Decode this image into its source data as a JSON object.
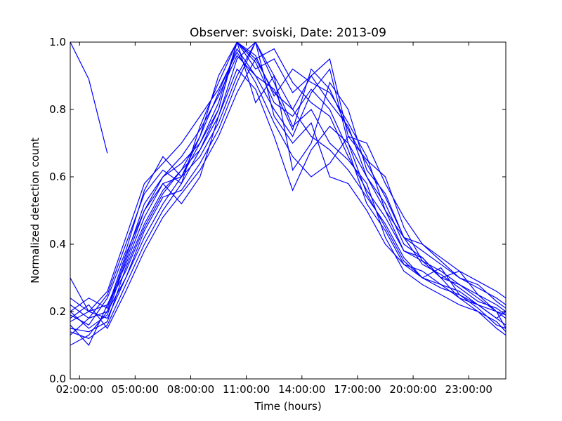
{
  "chart_data": {
    "type": "line",
    "title": "Observer: svoiski, Date: 2013-09",
    "xlabel": "Time (hours)",
    "ylabel": "Normalized detection count",
    "xlim": [
      1.5,
      25
    ],
    "ylim": [
      0,
      1.0
    ],
    "x_ticks": [
      {
        "value": 2,
        "label": "02:00:00"
      },
      {
        "value": 5,
        "label": "05:00:00"
      },
      {
        "value": 8,
        "label": "08:00:00"
      },
      {
        "value": 11,
        "label": "11:00:00"
      },
      {
        "value": 14,
        "label": "14:00:00"
      },
      {
        "value": 17,
        "label": "17:00:00"
      },
      {
        "value": 20,
        "label": "20:00:00"
      },
      {
        "value": 23,
        "label": "23:00:00"
      }
    ],
    "y_ticks": [
      {
        "value": 0.0,
        "label": "0.0"
      },
      {
        "value": 0.2,
        "label": "0.2"
      },
      {
        "value": 0.4,
        "label": "0.4"
      },
      {
        "value": 0.6,
        "label": "0.6"
      },
      {
        "value": 0.8,
        "label": "0.8"
      },
      {
        "value": 1.0,
        "label": "1.0"
      }
    ],
    "grid": false,
    "legend": "none",
    "line_color": "#0000ff",
    "series": [
      {
        "x": [
          1.5,
          2.5,
          3.5
        ],
        "y": [
          1.0,
          0.89,
          0.67
        ]
      },
      {
        "x": [
          1.5,
          2.5,
          3.5,
          4.5,
          5.5,
          6.5,
          7.5,
          8.5,
          9.5,
          10.5,
          11.5,
          12.5,
          13.5,
          14.5,
          15.5,
          16.5,
          17.5,
          18.5,
          19.5,
          20.5,
          21.5,
          22.5,
          23.5,
          24.5,
          25
        ],
        "y": [
          0.2,
          0.15,
          0.19,
          0.35,
          0.5,
          0.58,
          0.6,
          0.7,
          0.8,
          1.0,
          0.95,
          0.85,
          0.8,
          0.9,
          0.82,
          0.75,
          0.6,
          0.5,
          0.38,
          0.36,
          0.3,
          0.28,
          0.25,
          0.22,
          0.2
        ]
      },
      {
        "x": [
          1.5,
          2.5,
          3.5,
          4.5,
          5.5,
          6.5,
          7.5,
          8.5,
          9.5,
          10.5,
          11.5,
          12.5,
          13.5,
          14.5,
          15.5,
          16.5,
          17.5,
          18.5,
          19.5,
          20.5,
          21.5,
          22.5,
          23.5,
          24.5,
          25
        ],
        "y": [
          0.17,
          0.2,
          0.22,
          0.32,
          0.45,
          0.55,
          0.62,
          0.72,
          0.85,
          0.98,
          0.9,
          0.8,
          0.72,
          0.85,
          0.92,
          0.7,
          0.55,
          0.45,
          0.35,
          0.3,
          0.33,
          0.25,
          0.22,
          0.18,
          0.16
        ]
      },
      {
        "x": [
          1.5,
          2.5,
          3.5,
          4.5,
          5.5,
          6.5,
          7.5,
          8.5,
          9.5,
          10.5,
          11.5,
          12.5,
          13.5,
          14.5,
          15.5,
          16.5,
          17.5,
          18.5,
          19.5,
          20.5,
          21.5,
          22.5,
          23.5,
          24.5,
          25
        ],
        "y": [
          0.14,
          0.12,
          0.16,
          0.28,
          0.4,
          0.5,
          0.58,
          0.68,
          0.78,
          0.95,
          1.0,
          0.88,
          0.75,
          0.8,
          0.7,
          0.65,
          0.58,
          0.42,
          0.32,
          0.28,
          0.25,
          0.22,
          0.2,
          0.15,
          0.13
        ]
      },
      {
        "x": [
          1.5,
          2.5,
          3.5,
          4.5,
          5.5,
          6.5,
          7.5,
          8.5,
          9.5,
          10.5,
          11.5,
          12.5,
          13.5,
          14.5,
          15.5,
          16.5,
          17.5,
          18.5,
          19.5,
          20.5,
          21.5,
          22.5,
          23.5,
          24.5,
          25
        ],
        "y": [
          0.22,
          0.18,
          0.25,
          0.4,
          0.55,
          0.62,
          0.58,
          0.75,
          0.88,
          1.0,
          0.82,
          0.9,
          0.62,
          0.7,
          0.88,
          0.8,
          0.62,
          0.55,
          0.42,
          0.4,
          0.35,
          0.3,
          0.27,
          0.24,
          0.22
        ]
      },
      {
        "x": [
          1.5,
          2.5,
          3.5,
          4.5,
          5.5,
          6.5,
          7.5,
          8.5,
          9.5,
          10.5,
          11.5,
          12.5,
          13.5,
          14.5,
          15.5,
          16.5,
          17.5,
          18.5,
          19.5,
          20.5,
          21.5,
          22.5,
          23.5,
          24.5,
          25
        ],
        "y": [
          0.3,
          0.2,
          0.18,
          0.3,
          0.42,
          0.52,
          0.6,
          0.66,
          0.76,
          0.9,
          1.0,
          0.78,
          0.7,
          0.76,
          0.6,
          0.58,
          0.5,
          0.4,
          0.34,
          0.32,
          0.28,
          0.26,
          0.22,
          0.2,
          0.18
        ]
      },
      {
        "x": [
          1.5,
          2.5,
          3.5,
          4.5,
          5.5,
          6.5,
          7.5,
          8.5,
          9.5,
          10.5,
          11.5,
          12.5,
          13.5,
          14.5,
          15.5,
          16.5,
          17.5,
          18.5,
          19.5,
          20.5,
          21.5,
          22.5,
          23.5,
          24.5,
          25
        ],
        "y": [
          0.1,
          0.13,
          0.2,
          0.36,
          0.52,
          0.6,
          0.64,
          0.7,
          0.82,
          1.0,
          0.92,
          0.95,
          0.85,
          0.9,
          0.95,
          0.72,
          0.65,
          0.6,
          0.45,
          0.35,
          0.3,
          0.32,
          0.25,
          0.2,
          0.15
        ]
      },
      {
        "x": [
          1.5,
          2.5,
          3.5,
          4.5,
          5.5,
          6.5,
          7.5,
          8.5,
          9.5,
          10.5,
          11.5,
          12.5,
          13.5,
          14.5,
          15.5,
          16.5,
          17.5,
          18.5,
          19.5,
          20.5,
          21.5,
          22.5,
          23.5,
          24.5,
          25
        ],
        "y": [
          0.18,
          0.22,
          0.15,
          0.26,
          0.38,
          0.48,
          0.55,
          0.62,
          0.72,
          0.85,
          0.95,
          0.98,
          0.88,
          0.82,
          0.78,
          0.66,
          0.56,
          0.48,
          0.38,
          0.35,
          0.32,
          0.28,
          0.24,
          0.2,
          0.19
        ]
      },
      {
        "x": [
          1.5,
          2.5,
          3.5,
          4.5,
          5.5,
          6.5,
          7.5,
          8.5,
          9.5,
          10.5,
          11.5,
          12.5,
          13.5,
          14.5,
          15.5,
          16.5,
          17.5,
          18.5,
          19.5,
          20.5,
          21.5,
          22.5,
          23.5,
          24.5,
          25
        ],
        "y": [
          0.16,
          0.1,
          0.22,
          0.34,
          0.48,
          0.58,
          0.52,
          0.6,
          0.78,
          0.92,
          0.86,
          0.72,
          0.56,
          0.68,
          0.75,
          0.7,
          0.6,
          0.52,
          0.4,
          0.36,
          0.3,
          0.24,
          0.22,
          0.18,
          0.2
        ]
      },
      {
        "x": [
          1.5,
          2.5,
          3.5,
          4.5,
          5.5,
          6.5,
          7.5,
          8.5,
          9.5,
          10.5,
          11.5,
          12.5,
          13.5,
          14.5,
          15.5,
          16.5,
          17.5,
          18.5,
          19.5,
          20.5,
          21.5,
          22.5,
          23.5,
          24.5,
          25
        ],
        "y": [
          0.19,
          0.16,
          0.24,
          0.38,
          0.56,
          0.66,
          0.6,
          0.72,
          0.9,
          1.0,
          0.96,
          0.84,
          0.92,
          0.88,
          0.85,
          0.76,
          0.66,
          0.5,
          0.42,
          0.38,
          0.34,
          0.3,
          0.28,
          0.23,
          0.21
        ]
      },
      {
        "x": [
          1.5,
          2.5,
          3.5,
          4.5,
          5.5,
          6.5,
          7.5,
          8.5,
          9.5,
          10.5,
          11.5,
          12.5,
          13.5,
          14.5,
          15.5,
          16.5,
          17.5,
          18.5,
          19.5,
          20.5,
          21.5,
          22.5,
          23.5,
          24.5,
          25
        ],
        "y": [
          0.13,
          0.18,
          0.2,
          0.3,
          0.44,
          0.54,
          0.56,
          0.64,
          0.74,
          0.88,
          1.0,
          0.9,
          0.8,
          0.72,
          0.68,
          0.62,
          0.54,
          0.46,
          0.36,
          0.3,
          0.28,
          0.24,
          0.2,
          0.17,
          0.14
        ]
      },
      {
        "x": [
          1.5,
          2.5,
          3.5,
          4.5,
          5.5,
          6.5,
          7.5,
          8.5,
          9.5,
          10.5,
          11.5,
          12.5,
          13.5,
          14.5,
          15.5,
          16.5,
          17.5,
          18.5,
          19.5,
          20.5,
          21.5,
          22.5,
          23.5,
          24.5,
          25
        ],
        "y": [
          0.24,
          0.2,
          0.26,
          0.42,
          0.58,
          0.64,
          0.7,
          0.78,
          0.86,
          0.97,
          0.88,
          0.76,
          0.66,
          0.6,
          0.64,
          0.72,
          0.7,
          0.58,
          0.48,
          0.4,
          0.36,
          0.32,
          0.29,
          0.26,
          0.24
        ]
      },
      {
        "x": [
          1.5,
          2.5,
          3.5,
          4.5,
          5.5,
          6.5,
          7.5,
          8.5,
          9.5,
          10.5,
          11.5,
          12.5,
          13.5,
          14.5,
          15.5,
          16.5,
          17.5,
          18.5,
          19.5,
          20.5,
          21.5,
          22.5,
          23.5,
          24.5,
          25
        ],
        "y": [
          0.15,
          0.14,
          0.17,
          0.33,
          0.46,
          0.56,
          0.62,
          0.68,
          0.8,
          1.0,
          0.94,
          0.82,
          0.78,
          0.86,
          0.8,
          0.68,
          0.52,
          0.44,
          0.34,
          0.3,
          0.27,
          0.25,
          0.21,
          0.16,
          0.15
        ]
      },
      {
        "x": [
          1.5,
          2.5,
          3.5,
          4.5,
          5.5,
          6.5,
          7.5,
          8.5,
          9.5,
          10.5,
          11.5,
          12.5,
          13.5,
          14.5,
          15.5,
          16.5,
          17.5,
          18.5,
          19.5,
          20.5,
          21.5,
          22.5,
          23.5,
          24.5,
          25
        ],
        "y": [
          0.2,
          0.24,
          0.21,
          0.37,
          0.5,
          0.6,
          0.66,
          0.74,
          0.84,
          0.96,
          0.9,
          0.86,
          0.74,
          0.92,
          0.86,
          0.74,
          0.64,
          0.54,
          0.42,
          0.34,
          0.31,
          0.27,
          0.23,
          0.21,
          0.19
        ]
      }
    ]
  }
}
